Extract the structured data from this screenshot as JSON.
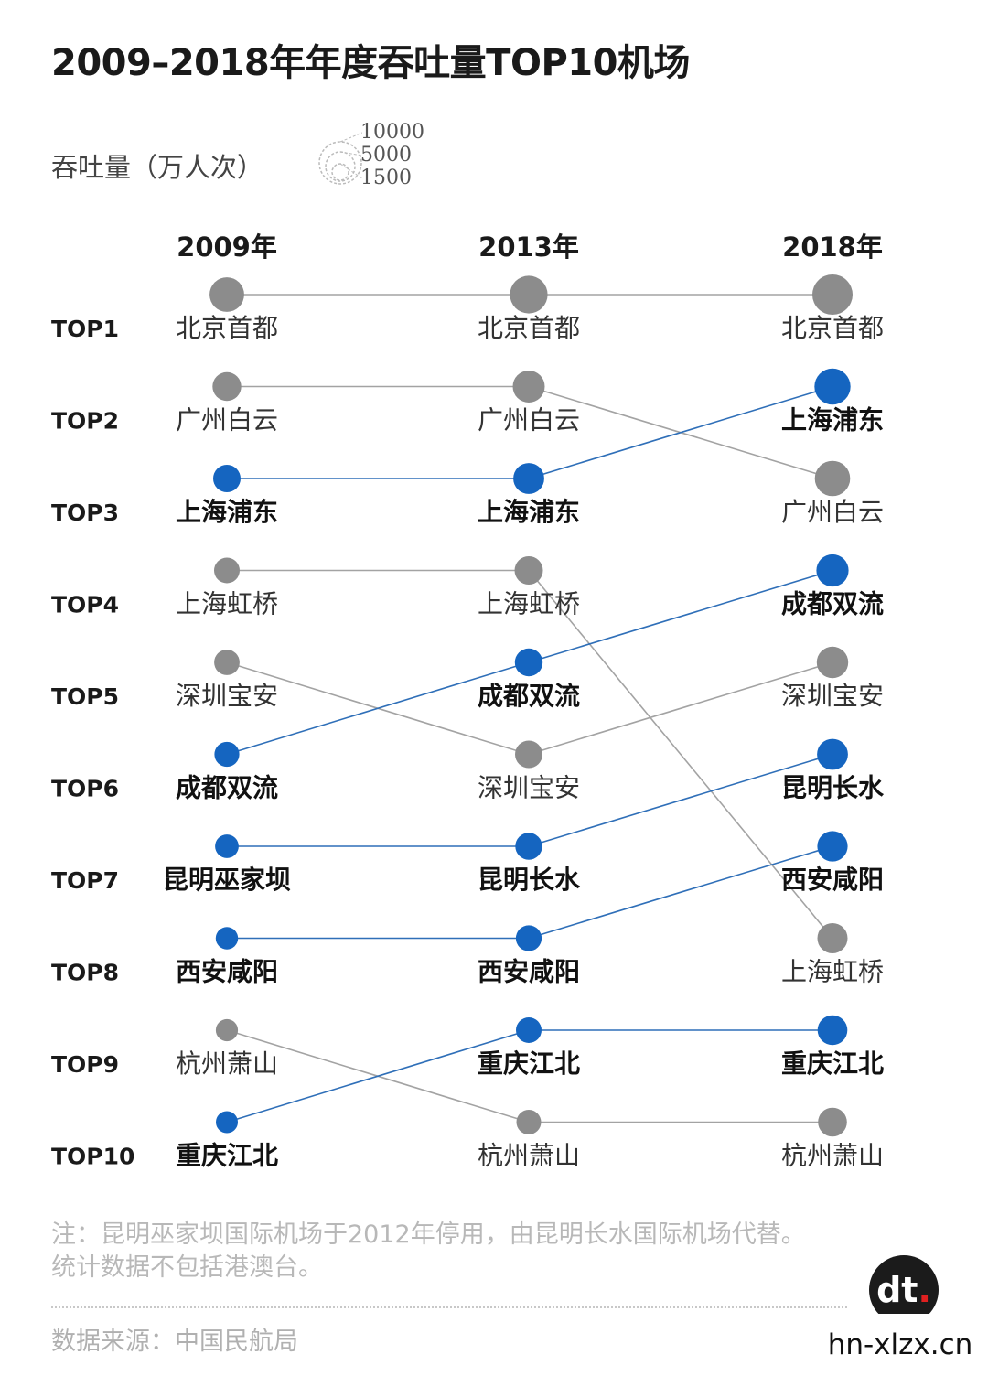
{
  "title": "2009–2018年年度吞吐量TOP10机场",
  "size_legend": {
    "label": "吞吐量（万人次）",
    "values": [
      "10000",
      "5000",
      "1500"
    ]
  },
  "colors": {
    "highlight": "#1565c0",
    "normal": "#8c8c8c",
    "line_normal": "#a3a3a3",
    "line_highlight": "#2f6fb8"
  },
  "chart_data": {
    "type": "bump",
    "years": [
      "2009年",
      "2013年",
      "2018年"
    ],
    "rank_labels": [
      "TOP1",
      "TOP2",
      "TOP3",
      "TOP4",
      "TOP5",
      "TOP6",
      "TOP7",
      "TOP8",
      "TOP9",
      "TOP10"
    ],
    "rankings": [
      [
        "北京首都",
        "广州白云",
        "上海浦东",
        "上海虹桥",
        "深圳宝安",
        "成都双流",
        "昆明巫家坝",
        "西安咸阳",
        "杭州萧山",
        "重庆江北"
      ],
      [
        "北京首都",
        "广州白云",
        "上海浦东",
        "上海虹桥",
        "成都双流",
        "深圳宝安",
        "昆明长水",
        "西安咸阳",
        "重庆江北",
        "杭州萧山"
      ],
      [
        "北京首都",
        "上海浦东",
        "广州白云",
        "成都双流",
        "深圳宝安",
        "昆明长水",
        "西安咸阳",
        "上海虹桥",
        "重庆江北",
        "杭州萧山"
      ]
    ],
    "highlighted": [
      "上海浦东",
      "成都双流",
      "昆明巫家坝",
      "昆明长水",
      "西安咸阳",
      "重庆江北"
    ],
    "connections": [
      [
        "北京首都",
        "北京首都"
      ],
      [
        "广州白云",
        "广州白云"
      ],
      [
        "上海浦东",
        "上海浦东"
      ],
      [
        "上海虹桥",
        "上海虹桥"
      ],
      [
        "深圳宝安",
        "深圳宝安"
      ],
      [
        "成都双流",
        "成都双流"
      ],
      [
        "昆明巫家坝",
        "昆明长水"
      ],
      [
        "西安咸阳",
        "西安咸阳"
      ],
      [
        "杭州萧山",
        "杭州萧山"
      ],
      [
        "重庆江北",
        "重庆江北"
      ]
    ],
    "throughput_wan": [
      [
        6537,
        3700,
        3190,
        2500,
        2450,
        2270,
        1890,
        1530,
        1490,
        1400
      ],
      [
        8371,
        5245,
        4719,
        3560,
        3345,
        3227,
        2970,
        2604,
        2527,
        2211
      ],
      [
        10098,
        7405,
        6974,
        5295,
        4934,
        4708,
        4465,
        4363,
        4160,
        3824
      ]
    ]
  },
  "note": {
    "line1": "注：昆明巫家坝国际机场于2012年停用，由昆明长水国际机场代替。",
    "line2": "统计数据不包括港澳台。"
  },
  "source": "数据来源：中国民航局",
  "logo_text": "dt",
  "site": "hn-xlzx.cn"
}
